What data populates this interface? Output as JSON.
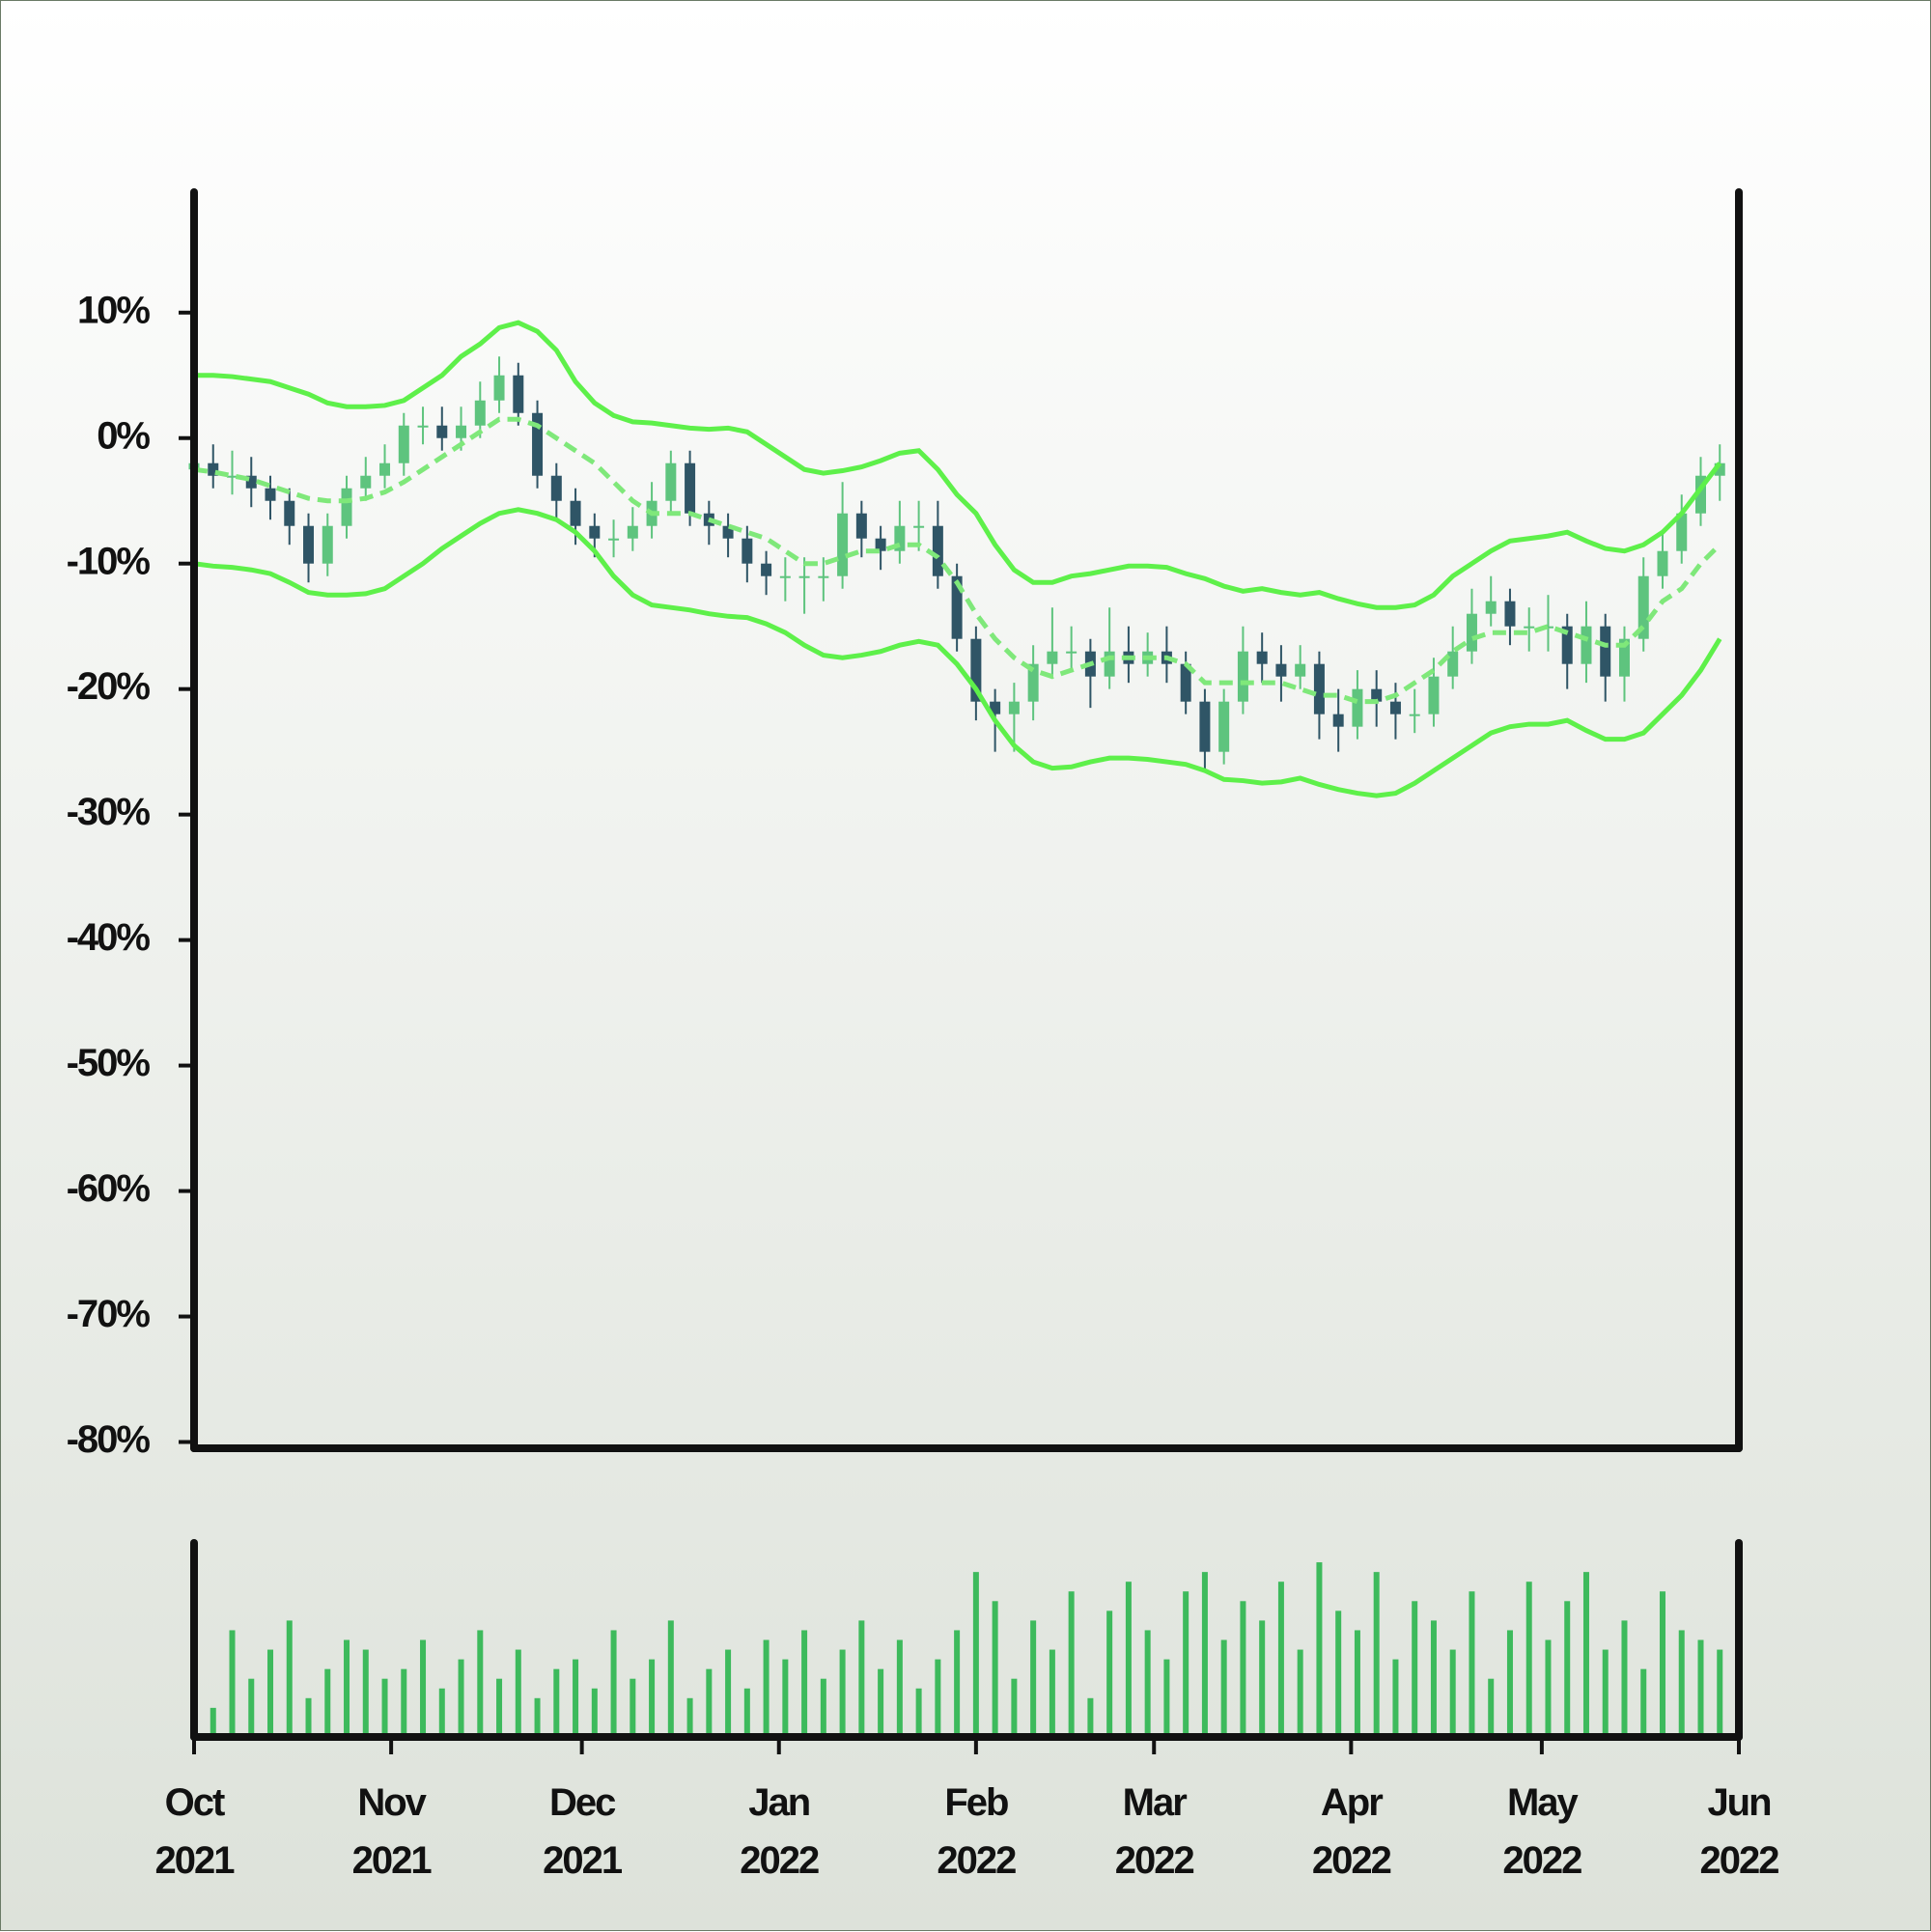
{
  "chart_data": {
    "type": "candlestick",
    "x": [
      "2021-10-01",
      "2021-10-04",
      "2021-10-07",
      "2021-10-10",
      "2021-10-13",
      "2021-10-16",
      "2021-10-19",
      "2021-10-22",
      "2021-10-25",
      "2021-10-28",
      "2021-10-31",
      "2021-11-03",
      "2021-11-06",
      "2021-11-09",
      "2021-11-12",
      "2021-11-15",
      "2021-11-18",
      "2021-11-21",
      "2021-11-24",
      "2021-11-27",
      "2021-11-30",
      "2021-12-03",
      "2021-12-06",
      "2021-12-09",
      "2021-12-12",
      "2021-12-15",
      "2021-12-18",
      "2021-12-21",
      "2021-12-24",
      "2021-12-27",
      "2021-12-30",
      "2022-01-02",
      "2022-01-05",
      "2022-01-08",
      "2022-01-11",
      "2022-01-14",
      "2022-01-17",
      "2022-01-20",
      "2022-01-23",
      "2022-01-26",
      "2022-01-29",
      "2022-02-01",
      "2022-02-04",
      "2022-02-07",
      "2022-02-10",
      "2022-02-13",
      "2022-02-16",
      "2022-02-19",
      "2022-02-22",
      "2022-02-25",
      "2022-02-28",
      "2022-03-03",
      "2022-03-06",
      "2022-03-09",
      "2022-03-12",
      "2022-03-15",
      "2022-03-18",
      "2022-03-21",
      "2022-03-24",
      "2022-03-27",
      "2022-03-30",
      "2022-04-02",
      "2022-04-05",
      "2022-04-08",
      "2022-04-11",
      "2022-04-14",
      "2022-04-17",
      "2022-04-20",
      "2022-04-23",
      "2022-04-26",
      "2022-04-29",
      "2022-05-02",
      "2022-05-05",
      "2022-05-08",
      "2022-05-11",
      "2022-05-14",
      "2022-05-17",
      "2022-05-20",
      "2022-05-23",
      "2022-05-26",
      "2022-05-29"
    ],
    "open": [
      -2.5,
      -2,
      -3,
      -3,
      -4,
      -5,
      -7,
      -10,
      -7,
      -4,
      -3,
      -2,
      1,
      1,
      0,
      1,
      3,
      5,
      2,
      -3,
      -5,
      -7,
      -8,
      -8,
      -7,
      -5,
      -2,
      -6,
      -7,
      -8,
      -10,
      -11,
      -11,
      -11,
      -11,
      -6,
      -8,
      -9,
      -7,
      -7,
      -11,
      -16,
      -21,
      -22,
      -21,
      -18,
      -17,
      -17,
      -19,
      -17,
      -18,
      -17,
      -18,
      -21,
      -25,
      -21,
      -17,
      -18,
      -19,
      -18,
      -22,
      -23,
      -20,
      -21,
      -22,
      -22,
      -19,
      -17,
      -14,
      -13,
      -15,
      -15,
      -15,
      -18,
      -15,
      -19,
      -16,
      -11,
      -9,
      -6,
      -3
    ],
    "high": [
      -0.5,
      -0.5,
      -1,
      -1.5,
      -3,
      -4,
      -6,
      -6,
      -3,
      -1.5,
      -0.5,
      2,
      2.5,
      2.5,
      2.5,
      4.5,
      6.5,
      6,
      3,
      -2,
      -4,
      -6,
      -6.5,
      -5.5,
      -3.5,
      -1,
      -1,
      -5,
      -6,
      -7,
      -9,
      -9.5,
      -9.5,
      -9.5,
      -3.5,
      -5,
      -7,
      -5,
      -5,
      -5,
      -10,
      -15,
      -20,
      -19.5,
      -16.5,
      -13.5,
      -15,
      -16,
      -13.5,
      -15,
      -15.5,
      -15,
      -17,
      -20,
      -20,
      -15,
      -15.5,
      -16.5,
      -16.5,
      -17,
      -20,
      -18.5,
      -18.5,
      -19.5,
      -20,
      -17.5,
      -15,
      -12,
      -11,
      -12,
      -13.5,
      -12.5,
      -14,
      -13,
      -14,
      -15,
      -9.5,
      -7.5,
      -4.5,
      -1.5,
      -0.5
    ],
    "low": [
      -4,
      -4,
      -4.5,
      -5.5,
      -6.5,
      -8.5,
      -11.5,
      -11,
      -8,
      -5,
      -4,
      -3,
      -0.5,
      -1,
      -1,
      0,
      2,
      1,
      -4,
      -6.5,
      -8.5,
      -9.5,
      -9.5,
      -9,
      -8,
      -6,
      -7,
      -8.5,
      -9.5,
      -11.5,
      -12.5,
      -13,
      -14,
      -13,
      -12,
      -9.5,
      -10.5,
      -10,
      -9,
      -12,
      -17,
      -22.5,
      -25,
      -25,
      -22.5,
      -19,
      -18.5,
      -21.5,
      -20,
      -19.5,
      -19,
      -19.5,
      -22,
      -26.5,
      -26,
      -22,
      -19.5,
      -21,
      -20,
      -24,
      -25,
      -24,
      -23,
      -24,
      -23.5,
      -23,
      -20,
      -18,
      -15,
      -16.5,
      -17,
      -17,
      -20,
      -19.5,
      -21,
      -21,
      -17,
      -12,
      -10,
      -7,
      -5
    ],
    "close": [
      -2,
      -3,
      -3,
      -4,
      -5,
      -7,
      -10,
      -7,
      -4,
      -3,
      -2,
      1,
      1,
      0,
      1,
      3,
      5,
      2,
      -3,
      -5,
      -7,
      -8,
      -8,
      -7,
      -5,
      -2,
      -6,
      -7,
      -8,
      -10,
      -11,
      -11,
      -11,
      -11,
      -6,
      -8,
      -9,
      -7,
      -7,
      -11,
      -16,
      -21,
      -22,
      -21,
      -18,
      -17,
      -17,
      -19,
      -17,
      -18,
      -17,
      -18,
      -21,
      -25,
      -21,
      -17,
      -18,
      -19,
      -18,
      -22,
      -23,
      -20,
      -21,
      -22,
      -22,
      -19,
      -17,
      -14,
      -13,
      -15,
      -15,
      -15,
      -18,
      -15,
      -19,
      -16,
      -11,
      -9,
      -6,
      -3,
      -2
    ],
    "up_color": "#5ec47e",
    "down_color": "#2f5566",
    "lines": [
      {
        "color": "#5ef04a",
        "dashed": false,
        "values": [
          5,
          5,
          4.9,
          4.7,
          4.5,
          4,
          3.5,
          2.8,
          2.5,
          2.5,
          2.6,
          3,
          4,
          5,
          6.5,
          7.5,
          8.8,
          9.2,
          8.5,
          7,
          4.5,
          2.8,
          1.8,
          1.3,
          1.2,
          1,
          0.8,
          0.7,
          0.8,
          0.5,
          -0.5,
          -1.5,
          -2.5,
          -2.8,
          -2.6,
          -2.3,
          -1.8,
          -1.2,
          -1,
          -2.5,
          -4.5,
          -6,
          -8.5,
          -10.5,
          -11.5,
          -11.5,
          -11,
          -10.8,
          -10.5,
          -10.2,
          -10.2,
          -10.3,
          -10.8,
          -11.2,
          -11.8,
          -12.2,
          -12,
          -12.3,
          -12.5,
          -12.3,
          -12.8,
          -13.2,
          -13.5,
          -13.5,
          -13.3,
          -12.5,
          -11,
          -10,
          -9,
          -8.2,
          -8,
          -7.8,
          -7.5,
          -8.2,
          -8.8,
          -9,
          -8.5,
          -7.5,
          -6,
          -4,
          -2
        ]
      },
      {
        "color": "#7fe87a",
        "dashed": true,
        "values": [
          -2.5,
          -2.7,
          -3,
          -3.3,
          -3.8,
          -4.3,
          -4.8,
          -5,
          -5,
          -4.8,
          -4.3,
          -3.5,
          -2.5,
          -1.5,
          -0.5,
          0.5,
          1.5,
          1.5,
          1,
          0,
          -1,
          -2,
          -3.5,
          -5,
          -6,
          -6,
          -6,
          -6.5,
          -7,
          -7.5,
          -8,
          -9,
          -10,
          -10,
          -9.5,
          -9,
          -9,
          -8.5,
          -8.5,
          -9.5,
          -11.5,
          -14,
          -16,
          -17.5,
          -18.5,
          -19,
          -18.5,
          -18,
          -17.5,
          -17.5,
          -17.5,
          -17.5,
          -18,
          -19.5,
          -19.5,
          -19.5,
          -19.5,
          -19.5,
          -20,
          -20.5,
          -20.5,
          -21,
          -21,
          -20.5,
          -19.5,
          -18.5,
          -17,
          -16,
          -15.5,
          -15.5,
          -15.5,
          -15,
          -15.5,
          -16,
          -16.5,
          -16.5,
          -15,
          -13,
          -12,
          -10,
          -8.5
        ]
      },
      {
        "color": "#5ef04a",
        "dashed": false,
        "values": [
          -10,
          -10.2,
          -10.3,
          -10.5,
          -10.8,
          -11.5,
          -12.3,
          -12.5,
          -12.5,
          -12.4,
          -12,
          -11,
          -10,
          -8.8,
          -7.8,
          -6.8,
          -6,
          -5.7,
          -6,
          -6.5,
          -7.5,
          -9,
          -11,
          -12.5,
          -13.3,
          -13.5,
          -13.7,
          -14,
          -14.2,
          -14.3,
          -14.8,
          -15.5,
          -16.5,
          -17.3,
          -17.5,
          -17.3,
          -17,
          -16.5,
          -16.2,
          -16.5,
          -18,
          -20,
          -22.5,
          -24.5,
          -25.8,
          -26.3,
          -26.2,
          -25.8,
          -25.5,
          -25.5,
          -25.6,
          -25.8,
          -26,
          -26.5,
          -27.2,
          -27.3,
          -27.5,
          -27.4,
          -27.1,
          -27.6,
          -28,
          -28.3,
          -28.5,
          -28.3,
          -27.5,
          -26.5,
          -25.5,
          -24.5,
          -23.5,
          -23,
          -22.8,
          -22.8,
          -22.5,
          -23.3,
          -24,
          -24,
          -23.5,
          -22,
          -20.5,
          -18.5,
          -16
        ]
      }
    ],
    "volume": {
      "color": "#3dba5c",
      "ylim": [
        0,
        100
      ],
      "values": [
        40,
        15,
        55,
        30,
        45,
        60,
        20,
        35,
        50,
        45,
        30,
        35,
        50,
        25,
        40,
        55,
        30,
        45,
        20,
        35,
        40,
        25,
        55,
        30,
        40,
        60,
        20,
        35,
        45,
        25,
        50,
        40,
        55,
        30,
        45,
        60,
        35,
        50,
        25,
        40,
        55,
        85,
        70,
        30,
        60,
        45,
        75,
        20,
        65,
        80,
        55,
        40,
        75,
        85,
        50,
        70,
        60,
        80,
        45,
        90,
        65,
        55,
        85,
        40,
        70,
        60,
        45,
        75,
        30,
        55,
        80,
        50,
        70,
        85,
        45,
        60,
        35,
        75,
        55,
        50,
        45
      ]
    },
    "ylim": [
      -80.5,
      19.6
    ],
    "yticks": [
      {
        "value": -80,
        "label": "-80%"
      },
      {
        "value": -70,
        "label": "-70%"
      },
      {
        "value": -60,
        "label": "-60%"
      },
      {
        "value": -50,
        "label": "-50%"
      },
      {
        "value": -40,
        "label": "-40%"
      },
      {
        "value": -30,
        "label": "-30%"
      },
      {
        "value": -20,
        "label": "-20%"
      },
      {
        "value": -10,
        "label": "-10%"
      },
      {
        "value": 0,
        "label": "0%"
      },
      {
        "value": 10,
        "label": "10%"
      }
    ],
    "xlim": [
      "2021-10-01",
      "2022-06-01"
    ],
    "xticks": [
      {
        "value": "2021-10-01",
        "label": "Oct 2021"
      },
      {
        "value": "2021-11-01",
        "label": "Nov 2021"
      },
      {
        "value": "2021-12-01",
        "label": "Dec 2021"
      },
      {
        "value": "2022-01-01",
        "label": "Jan 2022"
      },
      {
        "value": "2022-02-01",
        "label": "Feb 2022"
      },
      {
        "value": "2022-03-01",
        "label": "Mar 2022"
      },
      {
        "value": "2022-04-01",
        "label": "Apr 2022"
      },
      {
        "value": "2022-05-01",
        "label": "May 2022"
      },
      {
        "value": "2022-06-01",
        "label": "Jun 2022"
      }
    ]
  }
}
